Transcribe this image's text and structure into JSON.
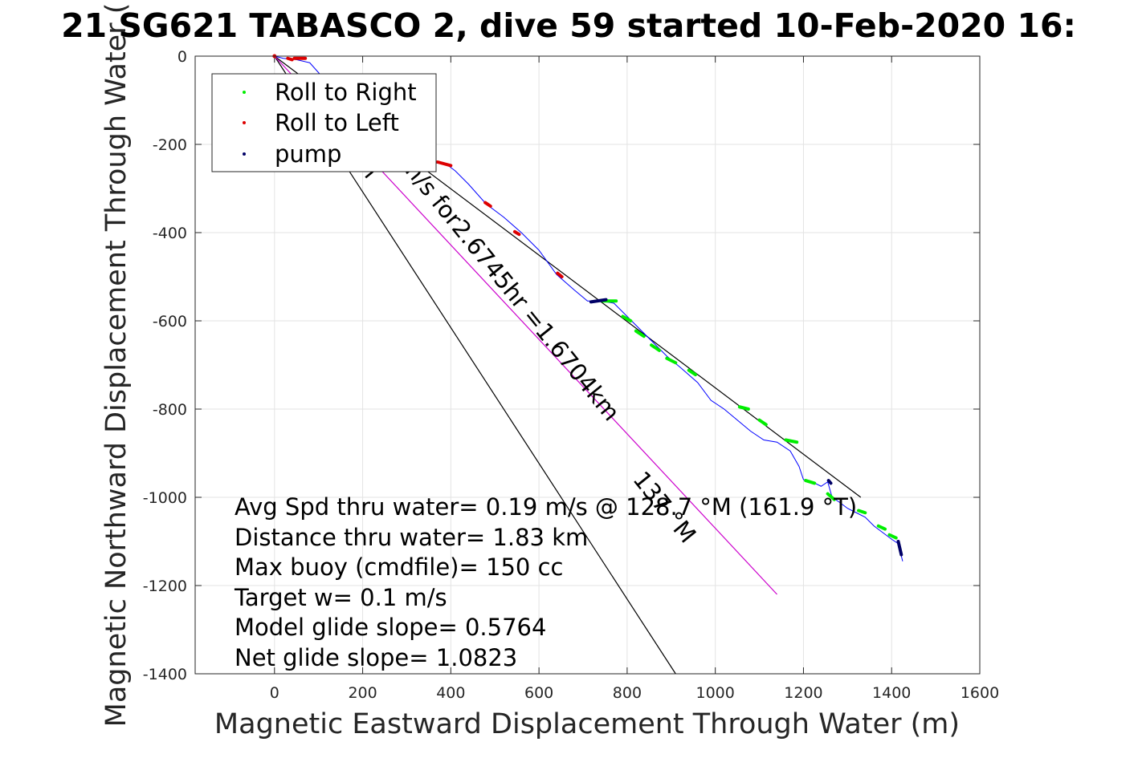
{
  "chart_data": {
    "type": "line",
    "title": "21 SG621 TABASCO 2, dive 59 started 10-Feb-2020 16:",
    "xlabel": "Magnetic Eastward Displacement Through Water (m)",
    "ylabel": "Magnetic Northward Displacement Through Water (",
    "xlim": [
      -180,
      1600
    ],
    "ylim": [
      -1400,
      0
    ],
    "xticks": [
      0,
      200,
      400,
      600,
      800,
      1000,
      1200,
      1400,
      1600
    ],
    "yticks": [
      0,
      -200,
      -400,
      -600,
      -800,
      -1000,
      -1200,
      -1400
    ],
    "grid": true,
    "legend_position": "top-left",
    "legend": [
      {
        "label": "Roll to Right",
        "color": "#00ee00"
      },
      {
        "label": "Roll to Left",
        "color": "#dd0000"
      },
      {
        "label": "pump",
        "color": "#000066"
      }
    ],
    "track": {
      "name": "dive track",
      "color": "#0000ff",
      "x": [
        0,
        20,
        50,
        80,
        120,
        180,
        240,
        300,
        350,
        390,
        410,
        440,
        480,
        520,
        560,
        600,
        640,
        680,
        710,
        740,
        770,
        800,
        830,
        860,
        890,
        920,
        960,
        990,
        1020,
        1050,
        1080,
        1110,
        1140,
        1170,
        1190,
        1200,
        1220,
        1240,
        1255,
        1265,
        1280,
        1300,
        1320,
        1340,
        1360,
        1380,
        1400,
        1415,
        1420,
        1425
      ],
      "y": [
        0,
        -5,
        -8,
        -15,
        -60,
        -120,
        -175,
        -215,
        -240,
        -245,
        -260,
        -290,
        -335,
        -365,
        -400,
        -440,
        -495,
        -530,
        -555,
        -555,
        -560,
        -590,
        -620,
        -650,
        -680,
        -705,
        -740,
        -780,
        -800,
        -825,
        -850,
        -870,
        -875,
        -895,
        -930,
        -960,
        -965,
        -975,
        -965,
        -1000,
        -1010,
        -1025,
        -1035,
        -1045,
        -1065,
        -1080,
        -1095,
        -1105,
        -1125,
        -1145
      ]
    },
    "roll_right_segments": [
      {
        "x": [
          745,
          775
        ],
        "y": [
          -555,
          -555
        ]
      },
      {
        "x": [
          790,
          808
        ],
        "y": [
          -590,
          -600
        ]
      },
      {
        "x": [
          820,
          838
        ],
        "y": [
          -623,
          -635
        ]
      },
      {
        "x": [
          855,
          873
        ],
        "y": [
          -655,
          -667
        ]
      },
      {
        "x": [
          890,
          910
        ],
        "y": [
          -685,
          -695
        ]
      },
      {
        "x": [
          940,
          955
        ],
        "y": [
          -712,
          -722
        ]
      },
      {
        "x": [
          1055,
          1075
        ],
        "y": [
          -795,
          -800
        ]
      },
      {
        "x": [
          1100,
          1115
        ],
        "y": [
          -825,
          -835
        ]
      },
      {
        "x": [
          1160,
          1185
        ],
        "y": [
          -870,
          -875
        ]
      },
      {
        "x": [
          1205,
          1225
        ],
        "y": [
          -962,
          -968
        ]
      },
      {
        "x": [
          1255,
          1270
        ],
        "y": [
          -992,
          -1005
        ]
      },
      {
        "x": [
          1325,
          1340
        ],
        "y": [
          -1030,
          -1035
        ]
      },
      {
        "x": [
          1370,
          1385
        ],
        "y": [
          -1065,
          -1072
        ]
      },
      {
        "x": [
          1395,
          1410
        ],
        "y": [
          -1085,
          -1092
        ]
      }
    ],
    "roll_left_segments": [
      {
        "x": [
          30,
          40
        ],
        "y": [
          -5,
          -8
        ]
      },
      {
        "x": [
          45,
          70
        ],
        "y": [
          -5,
          -5
        ]
      },
      {
        "x": [
          370,
          400
        ],
        "y": [
          -240,
          -248
        ]
      },
      {
        "x": [
          478,
          490
        ],
        "y": [
          -332,
          -340
        ]
      },
      {
        "x": [
          545,
          555
        ],
        "y": [
          -398,
          -404
        ]
      },
      {
        "x": [
          642,
          652
        ],
        "y": [
          -492,
          -500
        ]
      }
    ],
    "pump_segments": [
      {
        "x": [
          718,
          752
        ],
        "y": [
          -557,
          -552
        ]
      },
      {
        "x": [
          1257,
          1262
        ],
        "y": [
          -962,
          -968
        ]
      },
      {
        "x": [
          1415,
          1422
        ],
        "y": [
          -1100,
          -1130
        ]
      }
    ],
    "lines": [
      {
        "name": "net track",
        "color": "#000000",
        "x": [
          0,
          1330
        ],
        "y": [
          0,
          -1000
        ]
      },
      {
        "name": "model glide line",
        "color": "#000000",
        "x": [
          0,
          910
        ],
        "y": [
          0,
          -1400
        ]
      },
      {
        "name": "depth-averaged current",
        "color": "#cc00cc",
        "x": [
          0,
          1140
        ],
        "y": [
          0,
          -1220
        ]
      }
    ],
    "rotated_labels": [
      {
        "text": "m/s for2.6745hr =1.6704km"
      },
      {
        "text": "137 °M"
      },
      {
        "text": "n"
      }
    ],
    "annotations": [
      "Avg Spd thru water=  0.19 m/s @ 128.7 °M (161.9 °T)",
      "Distance thru water=  1.83 km",
      "Max buoy (cmdfile)= 150 cc",
      "Target w= 0.1 m/s",
      "Model glide slope= 0.5764",
      "Net glide slope= 1.0823"
    ]
  }
}
